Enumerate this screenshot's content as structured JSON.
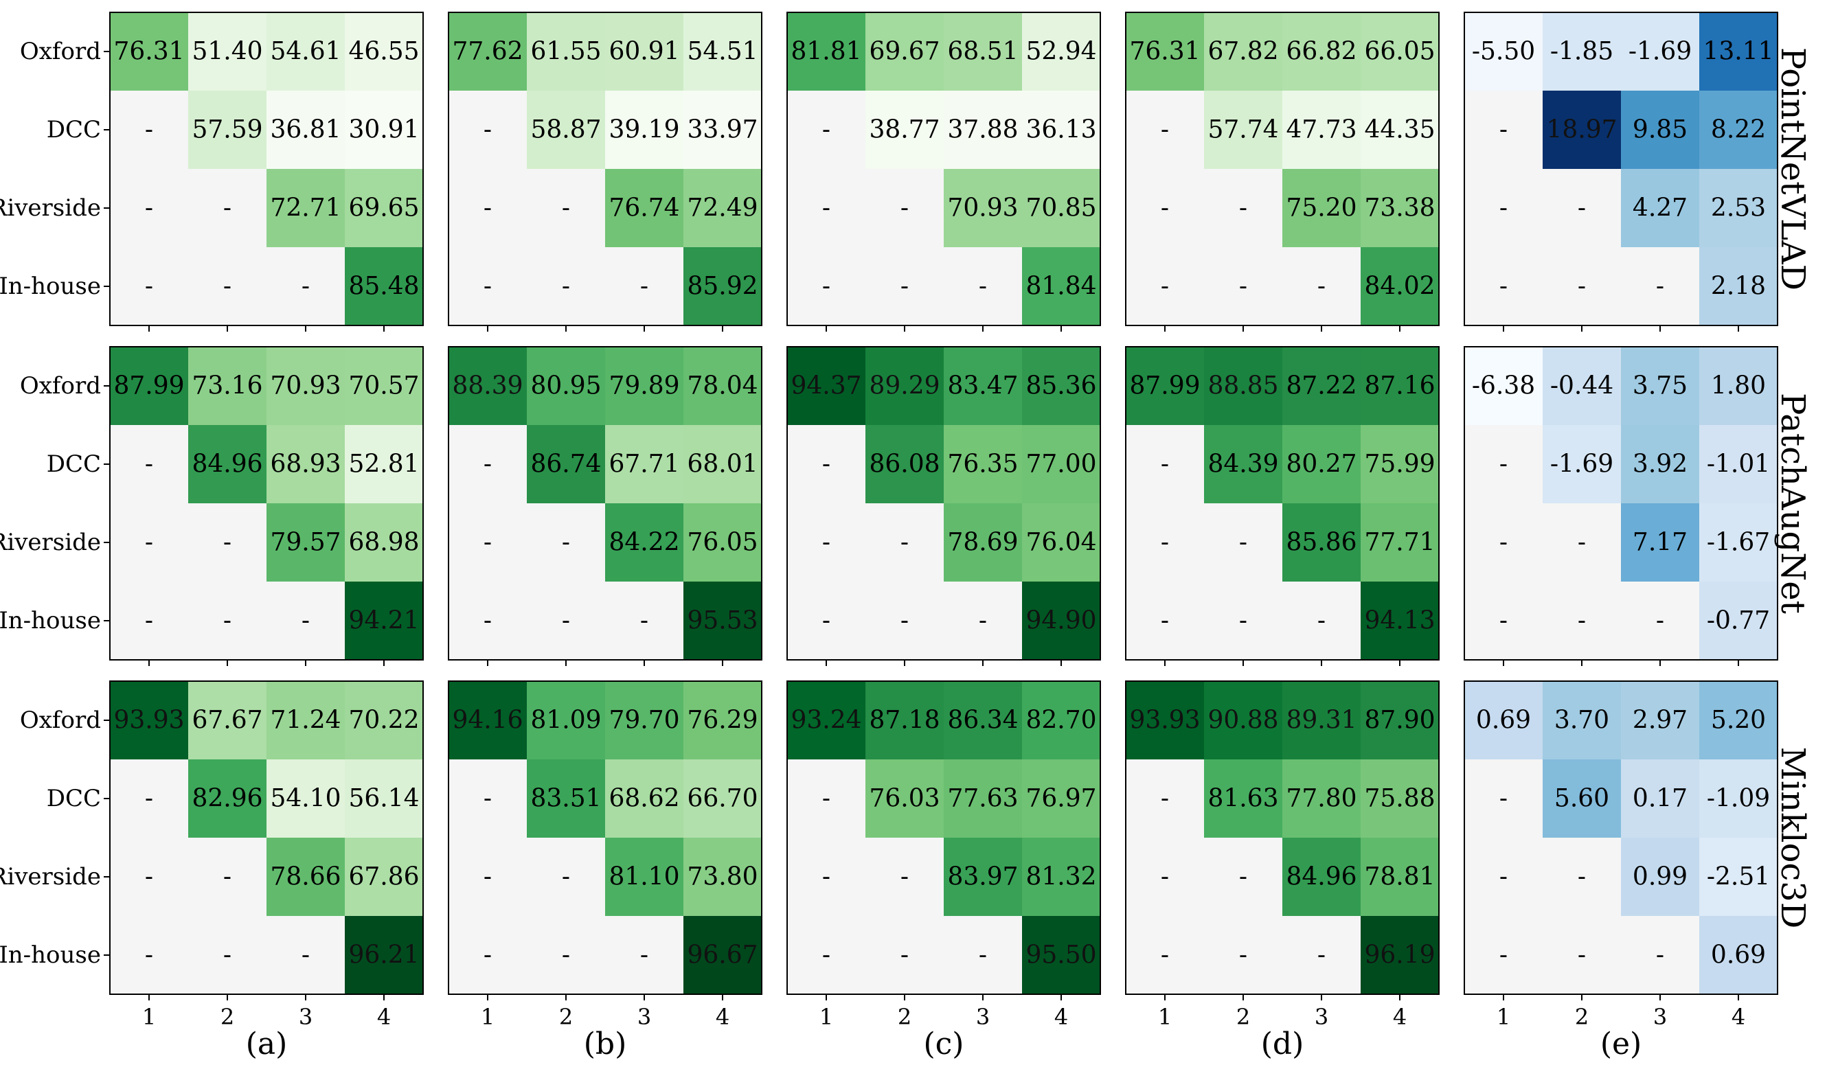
{
  "chart_data": {
    "type": "heatmap",
    "row_labels": [
      "Oxford",
      "DCC",
      "Riverside",
      "In-house"
    ],
    "col_labels": [
      "1",
      "2",
      "3",
      "4"
    ],
    "panel_labels": [
      "(a)",
      "(b)",
      "(c)",
      "(d)",
      "(e)"
    ],
    "method_labels": [
      "PointNetVLAD",
      "PatchAugNet",
      "Minkloc3D"
    ],
    "empty_marker": "-",
    "colormaps": {
      "a-d": "Greens",
      "e": "Blues"
    },
    "colors": {
      "empty": "#f5f5f5",
      "border": "#000000"
    },
    "panels": [
      [
        [
          [
            "76.31",
            "51.40",
            "54.61",
            "46.55"
          ],
          [
            "-",
            "57.59",
            "36.81",
            "30.91"
          ],
          [
            "-",
            "-",
            "72.71",
            "69.65"
          ],
          [
            "-",
            "-",
            "-",
            "85.48"
          ]
        ],
        [
          [
            "77.62",
            "61.55",
            "60.91",
            "54.51"
          ],
          [
            "-",
            "58.87",
            "39.19",
            "33.97"
          ],
          [
            "-",
            "-",
            "76.74",
            "72.49"
          ],
          [
            "-",
            "-",
            "-",
            "85.92"
          ]
        ],
        [
          [
            "81.81",
            "69.67",
            "68.51",
            "52.94"
          ],
          [
            "-",
            "38.77",
            "37.88",
            "36.13"
          ],
          [
            "-",
            "-",
            "70.93",
            "70.85"
          ],
          [
            "-",
            "-",
            "-",
            "81.84"
          ]
        ],
        [
          [
            "76.31",
            "67.82",
            "66.82",
            "66.05"
          ],
          [
            "-",
            "57.74",
            "47.73",
            "44.35"
          ],
          [
            "-",
            "-",
            "75.20",
            "73.38"
          ],
          [
            "-",
            "-",
            "-",
            "84.02"
          ]
        ],
        [
          [
            "-5.50",
            "-1.85",
            "-1.69",
            "13.11"
          ],
          [
            "-",
            "18.97",
            "9.85",
            "8.22"
          ],
          [
            "-",
            "-",
            "4.27",
            "2.53"
          ],
          [
            "-",
            "-",
            "-",
            "2.18"
          ]
        ]
      ],
      [
        [
          [
            "87.99",
            "73.16",
            "70.93",
            "70.57"
          ],
          [
            "-",
            "84.96",
            "68.93",
            "52.81"
          ],
          [
            "-",
            "-",
            "79.57",
            "68.98"
          ],
          [
            "-",
            "-",
            "-",
            "94.21"
          ]
        ],
        [
          [
            "88.39",
            "80.95",
            "79.89",
            "78.04"
          ],
          [
            "-",
            "86.74",
            "67.71",
            "68.01"
          ],
          [
            "-",
            "-",
            "84.22",
            "76.05"
          ],
          [
            "-",
            "-",
            "-",
            "95.53"
          ]
        ],
        [
          [
            "94.37",
            "89.29",
            "83.47",
            "85.36"
          ],
          [
            "-",
            "86.08",
            "76.35",
            "77.00"
          ],
          [
            "-",
            "-",
            "78.69",
            "76.04"
          ],
          [
            "-",
            "-",
            "-",
            "94.90"
          ]
        ],
        [
          [
            "87.99",
            "88.85",
            "87.22",
            "87.16"
          ],
          [
            "-",
            "84.39",
            "80.27",
            "75.99"
          ],
          [
            "-",
            "-",
            "85.86",
            "77.71"
          ],
          [
            "-",
            "-",
            "-",
            "94.13"
          ]
        ],
        [
          [
            "-6.38",
            "-0.44",
            "3.75",
            "1.80"
          ],
          [
            "-",
            "-1.69",
            "3.92",
            "-1.01"
          ],
          [
            "-",
            "-",
            "7.17",
            "-1.67"
          ],
          [
            "-",
            "-",
            "-",
            "-0.77"
          ]
        ]
      ],
      [
        [
          [
            "93.93",
            "67.67",
            "71.24",
            "70.22"
          ],
          [
            "-",
            "82.96",
            "54.10",
            "56.14"
          ],
          [
            "-",
            "-",
            "78.66",
            "67.86"
          ],
          [
            "-",
            "-",
            "-",
            "96.21"
          ]
        ],
        [
          [
            "94.16",
            "81.09",
            "79.70",
            "76.29"
          ],
          [
            "-",
            "83.51",
            "68.62",
            "66.70"
          ],
          [
            "-",
            "-",
            "81.10",
            "73.80"
          ],
          [
            "-",
            "-",
            "-",
            "96.67"
          ]
        ],
        [
          [
            "93.24",
            "87.18",
            "86.34",
            "82.70"
          ],
          [
            "-",
            "76.03",
            "77.63",
            "76.97"
          ],
          [
            "-",
            "-",
            "83.97",
            "81.32"
          ],
          [
            "-",
            "-",
            "-",
            "95.50"
          ]
        ],
        [
          [
            "93.93",
            "90.88",
            "89.31",
            "87.90"
          ],
          [
            "-",
            "81.63",
            "77.80",
            "75.88"
          ],
          [
            "-",
            "-",
            "84.96",
            "78.81"
          ],
          [
            "-",
            "-",
            "-",
            "96.19"
          ]
        ],
        [
          [
            "0.69",
            "3.70",
            "2.97",
            "5.20"
          ],
          [
            "-",
            "5.60",
            "0.17",
            "-1.09"
          ],
          [
            "-",
            "-",
            "0.99",
            "-2.51"
          ],
          [
            "-",
            "-",
            "-",
            "0.69"
          ]
        ]
      ]
    ]
  }
}
